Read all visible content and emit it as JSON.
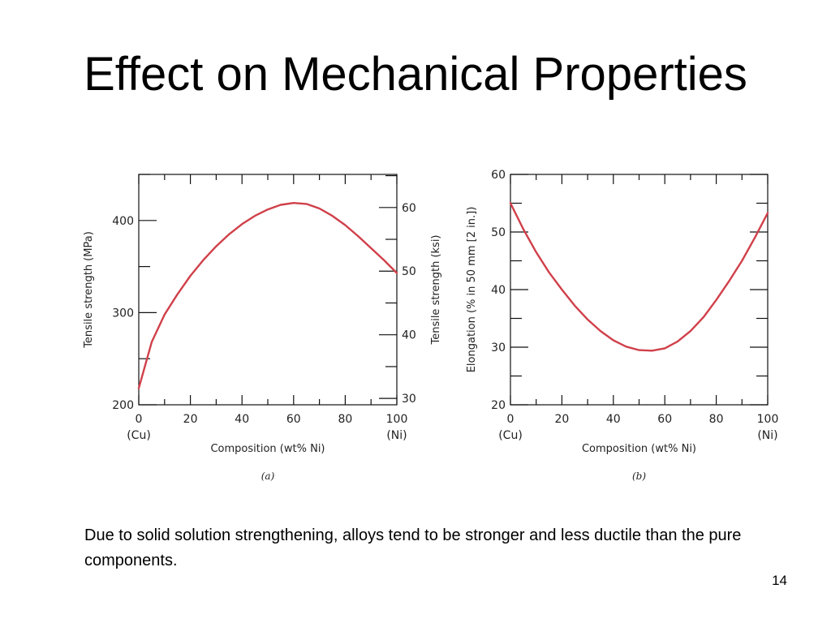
{
  "slide": {
    "title": "Effect on Mechanical Properties",
    "body": "Due to solid solution strengthening, alloys tend to be stronger and less ductile than the pure components.",
    "page_number": "14"
  },
  "chart_data": [
    {
      "type": "line",
      "caption": "(a)",
      "xlabel": "Composition (wt% Ni)",
      "ylabel": "Tensile strength (MPa)",
      "ylabel_right": "Tensile strength (ksi)",
      "xlim": [
        0,
        100
      ],
      "ylim": [
        200,
        450
      ],
      "ylim_right": [
        29,
        65.2
      ],
      "x_ticks": [
        "0",
        "20",
        "40",
        "60",
        "80",
        "100"
      ],
      "x_tick_sublabels": [
        {
          "x": 0,
          "text": "(Cu)"
        },
        {
          "x": 100,
          "text": "(Ni)"
        }
      ],
      "y_ticks": [
        "200",
        "300",
        "400"
      ],
      "y_ticks_right": [
        "30",
        "40",
        "50",
        "60"
      ],
      "grid": false,
      "series": [
        {
          "color": "#d0404a",
          "x": [
            0,
            5,
            10,
            15,
            20,
            25,
            30,
            35,
            40,
            45,
            50,
            55,
            60,
            65,
            70,
            75,
            80,
            85,
            90,
            95,
            100
          ],
          "y": [
            218,
            268,
            298,
            320,
            340,
            357,
            372,
            385,
            396,
            405,
            412,
            417,
            419,
            418,
            413,
            405,
            395,
            383,
            370,
            357,
            343
          ]
        }
      ]
    },
    {
      "type": "line",
      "caption": "(b)",
      "xlabel": "Composition (wt% Ni)",
      "ylabel": "Elongation (% in 50 mm [2 in.])",
      "xlim": [
        0,
        100
      ],
      "ylim": [
        20,
        60
      ],
      "x_ticks": [
        "0",
        "20",
        "40",
        "60",
        "80",
        "100"
      ],
      "x_tick_sublabels": [
        {
          "x": 0,
          "text": "(Cu)"
        },
        {
          "x": 100,
          "text": "(Ni)"
        }
      ],
      "y_ticks": [
        "20",
        "30",
        "40",
        "50",
        "60"
      ],
      "grid": false,
      "series": [
        {
          "color": "#d0404a",
          "x": [
            0,
            5,
            10,
            15,
            20,
            25,
            30,
            35,
            40,
            45,
            50,
            55,
            60,
            65,
            70,
            75,
            80,
            85,
            90,
            95,
            100
          ],
          "y": [
            55,
            50.5,
            46.5,
            43,
            40,
            37.2,
            34.8,
            32.8,
            31.2,
            30.1,
            29.5,
            29.4,
            29.8,
            31,
            32.8,
            35.2,
            38.2,
            41.5,
            45,
            49,
            53.3
          ]
        }
      ]
    }
  ]
}
